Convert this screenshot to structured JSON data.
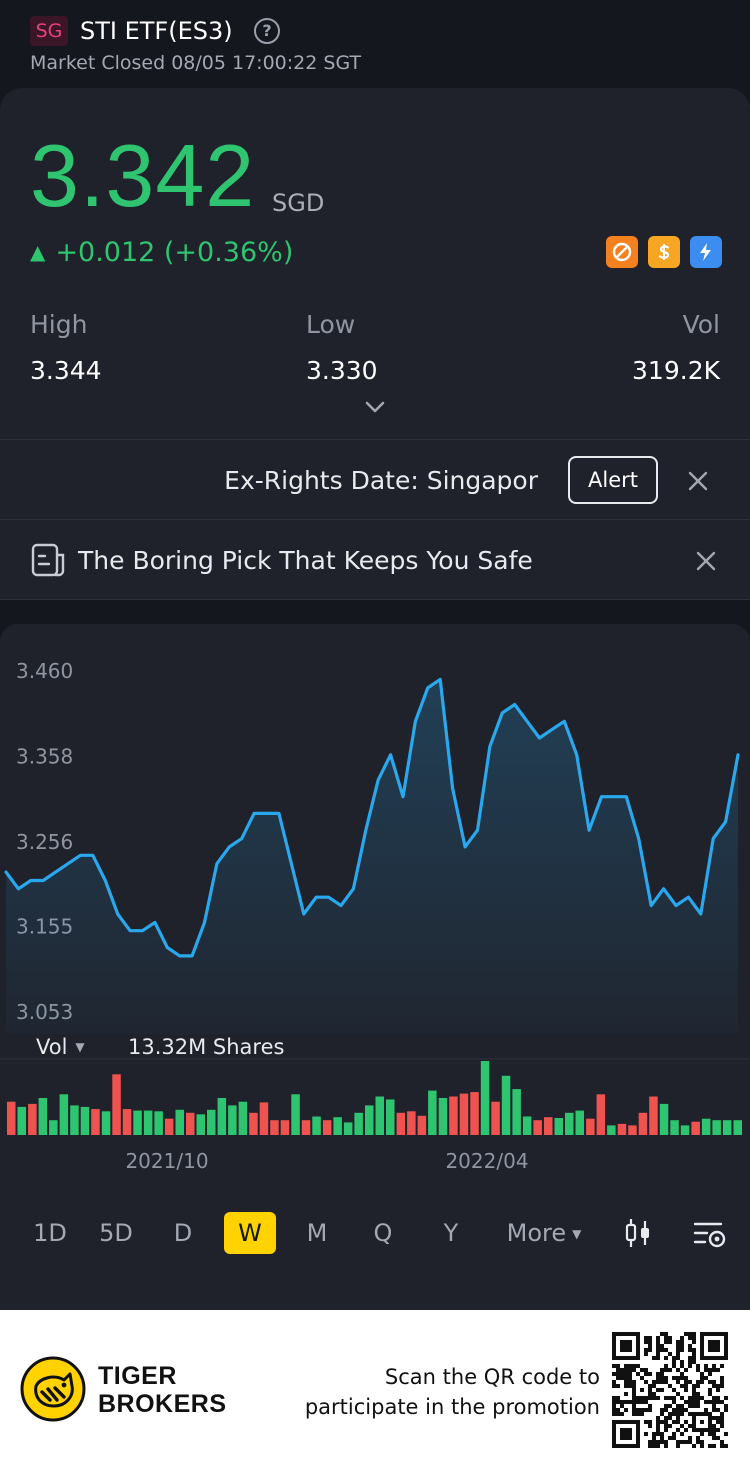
{
  "header": {
    "market_badge": "SG",
    "title": "STI ETF(ES3)",
    "help_glyph": "?",
    "status": "Market Closed 08/05 17:00:22 SGT"
  },
  "quote": {
    "price": "3.342",
    "currency": "SGD",
    "change_arrow": "▲",
    "change": "+0.012 (+0.36%)",
    "badge_icons": [
      "no-short-icon",
      "dollar-icon",
      "flash-icon"
    ],
    "stats": {
      "high_label": "High",
      "high_value": "3.344",
      "low_label": "Low",
      "low_value": "3.330",
      "vol_label": "Vol",
      "vol_value": "319.2K"
    }
  },
  "alert_banner": {
    "text": "Ex-Rights Date: Singapor",
    "button": "Alert"
  },
  "promo_banner": {
    "text": "The Boring Pick That Keeps You Safe"
  },
  "chart_data": {
    "type": "area",
    "y_ticks": [
      "3.460",
      "3.358",
      "3.256",
      "3.155",
      "3.053"
    ],
    "ylim": [
      3.053,
      3.46
    ],
    "x_ticks": [
      "2021/10",
      "2022/04"
    ],
    "values": [
      3.22,
      3.2,
      3.21,
      3.21,
      3.22,
      3.23,
      3.24,
      3.24,
      3.21,
      3.17,
      3.15,
      3.15,
      3.16,
      3.13,
      3.12,
      3.12,
      3.16,
      3.23,
      3.25,
      3.26,
      3.29,
      3.29,
      3.29,
      3.23,
      3.17,
      3.19,
      3.19,
      3.18,
      3.2,
      3.27,
      3.33,
      3.36,
      3.31,
      3.4,
      3.44,
      3.45,
      3.32,
      3.25,
      3.27,
      3.37,
      3.41,
      3.42,
      3.4,
      3.38,
      3.39,
      3.4,
      3.36,
      3.27,
      3.31,
      3.31,
      3.31,
      3.26,
      3.18,
      3.2,
      3.18,
      3.19,
      3.17,
      3.26,
      3.28,
      3.36
    ],
    "grid": false,
    "line_color": "#2aa8ee",
    "volume": {
      "label": "Vol",
      "value": "13.32M Shares",
      "bars": [
        {
          "v": 0.45,
          "up": false
        },
        {
          "v": 0.38,
          "up": true
        },
        {
          "v": 0.42,
          "up": false
        },
        {
          "v": 0.5,
          "up": true
        },
        {
          "v": 0.2,
          "up": true
        },
        {
          "v": 0.55,
          "up": true
        },
        {
          "v": 0.4,
          "up": true
        },
        {
          "v": 0.38,
          "up": true
        },
        {
          "v": 0.35,
          "up": false
        },
        {
          "v": 0.32,
          "up": true
        },
        {
          "v": 0.82,
          "up": false
        },
        {
          "v": 0.35,
          "up": false
        },
        {
          "v": 0.33,
          "up": true
        },
        {
          "v": 0.33,
          "up": true
        },
        {
          "v": 0.32,
          "up": true
        },
        {
          "v": 0.22,
          "up": false
        },
        {
          "v": 0.34,
          "up": true
        },
        {
          "v": 0.3,
          "up": false
        },
        {
          "v": 0.28,
          "up": true
        },
        {
          "v": 0.34,
          "up": true
        },
        {
          "v": 0.5,
          "up": true
        },
        {
          "v": 0.4,
          "up": true
        },
        {
          "v": 0.45,
          "up": true
        },
        {
          "v": 0.3,
          "up": false
        },
        {
          "v": 0.44,
          "up": false
        },
        {
          "v": 0.2,
          "up": false
        },
        {
          "v": 0.2,
          "up": false
        },
        {
          "v": 0.55,
          "up": true
        },
        {
          "v": 0.2,
          "up": false
        },
        {
          "v": 0.25,
          "up": true
        },
        {
          "v": 0.2,
          "up": false
        },
        {
          "v": 0.24,
          "up": true
        },
        {
          "v": 0.17,
          "up": true
        },
        {
          "v": 0.3,
          "up": true
        },
        {
          "v": 0.4,
          "up": true
        },
        {
          "v": 0.52,
          "up": true
        },
        {
          "v": 0.48,
          "up": true
        },
        {
          "v": 0.3,
          "up": false
        },
        {
          "v": 0.32,
          "up": false
        },
        {
          "v": 0.26,
          "up": false
        },
        {
          "v": 0.6,
          "up": true
        },
        {
          "v": 0.5,
          "up": true
        },
        {
          "v": 0.52,
          "up": false
        },
        {
          "v": 0.56,
          "up": false
        },
        {
          "v": 0.58,
          "up": false
        },
        {
          "v": 1.0,
          "up": true
        },
        {
          "v": 0.45,
          "up": false
        },
        {
          "v": 0.8,
          "up": true
        },
        {
          "v": 0.62,
          "up": true
        },
        {
          "v": 0.25,
          "up": true
        },
        {
          "v": 0.2,
          "up": false
        },
        {
          "v": 0.24,
          "up": false
        },
        {
          "v": 0.23,
          "up": true
        },
        {
          "v": 0.3,
          "up": true
        },
        {
          "v": 0.33,
          "up": true
        },
        {
          "v": 0.22,
          "up": false
        },
        {
          "v": 0.55,
          "up": false
        },
        {
          "v": 0.13,
          "up": true
        },
        {
          "v": 0.15,
          "up": false
        },
        {
          "v": 0.13,
          "up": false
        },
        {
          "v": 0.3,
          "up": false
        },
        {
          "v": 0.52,
          "up": false
        },
        {
          "v": 0.42,
          "up": true
        },
        {
          "v": 0.2,
          "up": true
        },
        {
          "v": 0.13,
          "up": true
        },
        {
          "v": 0.18,
          "up": false
        },
        {
          "v": 0.22,
          "up": true
        },
        {
          "v": 0.2,
          "up": true
        },
        {
          "v": 0.2,
          "up": true
        },
        {
          "v": 0.2,
          "up": true
        }
      ]
    }
  },
  "periods": {
    "items": [
      "1D",
      "5D",
      "D",
      "W",
      "M",
      "Q",
      "Y"
    ],
    "active": "W",
    "more": "More",
    "more_caret": "▼",
    "tools": [
      "candlestick-icon",
      "chart-settings-icon"
    ]
  },
  "colors": {
    "up": "#2fc46f",
    "down": "#ef5350",
    "accent": "#ffd200",
    "card": "#1f222b",
    "background": "#15171e"
  },
  "footer": {
    "brand_line1": "TIGER",
    "brand_line2": "BROKERS",
    "scan_line1": "Scan the QR code to",
    "scan_line2": "participate in the promotion"
  }
}
